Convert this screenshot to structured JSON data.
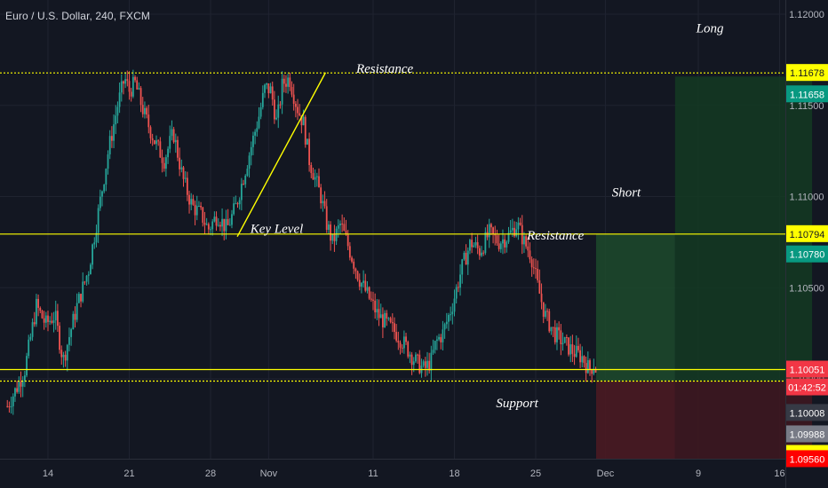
{
  "header": {
    "symbol_title": "Euro / U.S. Dollar, 240, FXCM"
  },
  "chart_data": {
    "type": "candlestick",
    "title": "Euro / U.S. Dollar, 240, FXCM",
    "symbol": "Euro / U.S. Dollar",
    "interval": "240",
    "source": "FXCM",
    "grid": true,
    "ylim": [
      1.0938,
      1.1213
    ],
    "xlim_days": [
      10.5,
      48
    ],
    "x_ticks": [
      {
        "label": "14",
        "day": 14
      },
      {
        "label": "21",
        "day": 21
      },
      {
        "label": "28",
        "day": 28
      },
      {
        "label": "Nov",
        "day": 33
      },
      {
        "label": "11",
        "day": 42
      },
      {
        "label": "18",
        "day": 49
      },
      {
        "label": "25",
        "day": 56
      },
      {
        "label": "Dec",
        "day": 62
      },
      {
        "label": "9",
        "day": 70
      },
      {
        "label": "16",
        "day": 77
      }
    ],
    "y_ticks": [
      "1.12000",
      "1.11500",
      "1.11000",
      "1.10500",
      "1.10000"
    ],
    "price_path": [
      [
        10.5,
        1.0985
      ],
      [
        11.3,
        1.0995
      ],
      [
        12.0,
        1.1005
      ],
      [
        13.0,
        1.104
      ],
      [
        13.8,
        1.103
      ],
      [
        14.6,
        1.1035
      ],
      [
        15.3,
        1.101
      ],
      [
        16.5,
        1.104
      ],
      [
        17.5,
        1.106
      ],
      [
        18.3,
        1.109
      ],
      [
        19.2,
        1.1125
      ],
      [
        20.0,
        1.115
      ],
      [
        20.6,
        1.1165
      ],
      [
        21.0,
        1.1158
      ],
      [
        21.5,
        1.1162
      ],
      [
        22.3,
        1.1145
      ],
      [
        23.2,
        1.113
      ],
      [
        24.0,
        1.112
      ],
      [
        24.8,
        1.1135
      ],
      [
        25.6,
        1.111
      ],
      [
        26.4,
        1.1095
      ],
      [
        27.2,
        1.109
      ],
      [
        27.8,
        1.1082
      ],
      [
        28.6,
        1.109
      ],
      [
        29.4,
        1.1082
      ],
      [
        30.2,
        1.1095
      ],
      [
        31.0,
        1.1115
      ],
      [
        31.6,
        1.113
      ],
      [
        32.2,
        1.1145
      ],
      [
        32.7,
        1.116
      ],
      [
        33.2,
        1.1158
      ],
      [
        33.7,
        1.114
      ],
      [
        34.2,
        1.1162
      ],
      [
        34.8,
        1.1165
      ],
      [
        35.4,
        1.115
      ],
      [
        36.0,
        1.114
      ],
      [
        36.5,
        1.112
      ],
      [
        37.0,
        1.111
      ],
      [
        37.5,
        1.11
      ],
      [
        38.0,
        1.1085
      ],
      [
        38.5,
        1.1075
      ],
      [
        39.2,
        1.1085
      ],
      [
        40.0,
        1.107
      ],
      [
        40.8,
        1.1055
      ],
      [
        41.6,
        1.1045
      ],
      [
        42.4,
        1.1035
      ],
      [
        43.2,
        1.103
      ],
      [
        44.0,
        1.1025
      ],
      [
        44.8,
        1.1018
      ],
      [
        45.6,
        1.101
      ],
      [
        46.4,
        1.1005
      ],
      [
        47.0,
        1.101
      ],
      [
        47.4,
        1.102
      ],
      [
        48.0,
        1.1025
      ],
      [
        48.8,
        1.104
      ],
      [
        49.6,
        1.106
      ],
      [
        50.4,
        1.1075
      ],
      [
        51.2,
        1.107
      ],
      [
        52.0,
        1.108
      ],
      [
        52.8,
        1.1075
      ],
      [
        53.6,
        1.1078
      ],
      [
        54.4,
        1.1085
      ],
      [
        55.0,
        1.1075
      ],
      [
        55.6,
        1.1068
      ],
      [
        56.2,
        1.105
      ],
      [
        56.8,
        1.1035
      ],
      [
        57.6,
        1.1025
      ],
      [
        58.4,
        1.102
      ],
      [
        59.2,
        1.1015
      ],
      [
        60.0,
        1.1012
      ],
      [
        60.6,
        1.1005
      ],
      [
        61.0,
        1.1008
      ],
      [
        61.2,
        1.1005
      ]
    ],
    "lines": [
      {
        "kind": "horizontal",
        "style": "dotted",
        "color": "#ffff00",
        "price": 1.11678
      },
      {
        "kind": "horizontal",
        "style": "solid",
        "color": "#ffff00",
        "price": 1.10794
      },
      {
        "kind": "horizontal",
        "style": "solid",
        "color": "#ffff00",
        "price": 1.10051
      },
      {
        "kind": "horizontal",
        "style": "dotted",
        "color": "#ffff00",
        "price": 1.09988
      },
      {
        "kind": "trendline",
        "color": "#ffff00",
        "from": [
          30.3,
          1.1078
        ],
        "to": [
          37.9,
          1.1168
        ]
      }
    ],
    "annotations": [
      {
        "text": "Resistance",
        "day": 43.0,
        "price": 1.1168
      },
      {
        "text": "Key Level",
        "day": 33.7,
        "price": 1.108
      },
      {
        "text": "Resistance",
        "day": 57.7,
        "price": 1.10765
      },
      {
        "text": "Support",
        "day": 54.4,
        "price": 1.09845
      },
      {
        "text": "Short",
        "day": 63.8,
        "price": 1.11
      },
      {
        "text": "Long",
        "day": 71.0,
        "price": 1.119
      }
    ],
    "positions": [
      {
        "type": "short",
        "start_day": 61.2,
        "end_day": 68.0,
        "top_price": 1.10794,
        "mid_price": 1.09988,
        "bottom_price": 1.0956
      },
      {
        "type": "long",
        "start_day": 68.0,
        "end_day": 79.8,
        "top_price": 1.11658,
        "mid_price": 1.09988,
        "bottom_price": 1.0956
      }
    ],
    "price_labels": [
      {
        "text": "1.11678",
        "price": 1.11678,
        "bg": "#ffff00",
        "fg": "#131722"
      },
      {
        "text": "1.11658",
        "price": 1.11658,
        "bg": "#089981",
        "fg": "#ffffff",
        "offset": 1
      },
      {
        "text": "1.10794",
        "price": 1.10794,
        "bg": "#ffff00",
        "fg": "#131722"
      },
      {
        "text": "1.10780",
        "price": 1.1078,
        "bg": "#089981",
        "fg": "#ffffff",
        "offset": 1
      },
      {
        "text": "1.10051",
        "price": 1.10051,
        "bg": "#f23645",
        "fg": "#ffffff"
      },
      {
        "text": "01:42:52",
        "price": 1.10051,
        "bg": "#f23645",
        "fg": "#ffffff",
        "offset": 1
      },
      {
        "text": "1.10008",
        "price": 1.10008,
        "bg": "#363a45",
        "fg": "#ffffff",
        "offset": 2
      },
      {
        "text": "1.09988",
        "price": 1.09988,
        "bg": "#787b86",
        "fg": "#ffffff",
        "offset": 3
      },
      {
        "text": "1.09978",
        "price": 1.09978,
        "bg": "#ffff00",
        "fg": "#131722",
        "offset": 4
      },
      {
        "text": "1.09560",
        "price": 1.0956,
        "bg": "#ff0000",
        "fg": "#ffffff"
      }
    ],
    "colors": {
      "up": "#26a69a",
      "down": "#ef5350",
      "background": "#131722",
      "grid": "#1f2330",
      "axis_text": "#b2b5be",
      "annotation": "#ffffff",
      "short_profit_zone": "#1d4a2c",
      "short_risk_zone": "#4a1a22",
      "long_profit_zone": "#143a22",
      "long_risk_zone": "#3d1720"
    }
  }
}
